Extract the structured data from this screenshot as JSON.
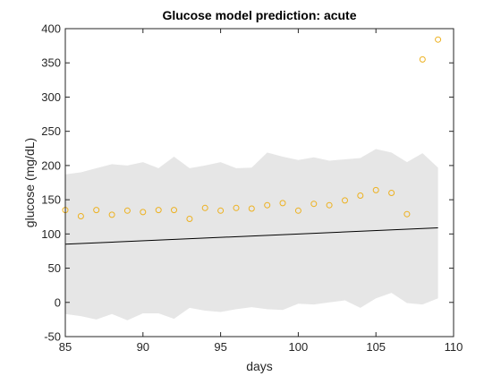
{
  "chart_data": {
    "type": "line",
    "title": "Glucose model prediction: acute",
    "xlabel": "days",
    "ylabel": "glucose (mg/dL)",
    "xlim": [
      85,
      110
    ],
    "ylim": [
      -50,
      400
    ],
    "xticks": [
      85,
      90,
      95,
      100,
      105,
      110
    ],
    "yticks": [
      -50,
      0,
      50,
      100,
      150,
      200,
      250,
      300,
      350,
      400
    ],
    "grid": false,
    "band": {
      "x": [
        85,
        86,
        87,
        88,
        89,
        90,
        91,
        92,
        93,
        94,
        95,
        96,
        97,
        98,
        99,
        100,
        101,
        102,
        103,
        104,
        105,
        106,
        107,
        108,
        109
      ],
      "upper": [
        187,
        190,
        196,
        202,
        200,
        205,
        196,
        213,
        196,
        200,
        205,
        196,
        197,
        219,
        213,
        208,
        212,
        207,
        209,
        211,
        224,
        219,
        205,
        218,
        197
      ],
      "lower": [
        -17,
        -20,
        -25,
        -17,
        -26,
        -16,
        -16,
        -24,
        -8,
        -12,
        -14,
        -10,
        -7,
        -10,
        -11,
        -2,
        -3,
        0,
        3,
        -8,
        6,
        14,
        -1,
        -3,
        6
      ],
      "color": "#e6e6e6"
    },
    "series": [
      {
        "mark": "line",
        "x": [
          85,
          109
        ],
        "y": [
          85,
          109
        ],
        "color": "#000000"
      },
      {
        "mark": "scatter",
        "x": [
          85,
          86,
          87,
          88,
          89,
          90,
          91,
          92,
          93,
          94,
          95,
          96,
          97,
          98,
          99,
          100,
          101,
          102,
          103,
          104,
          105,
          106,
          107,
          108,
          109
        ],
        "y": [
          135,
          126,
          135,
          128,
          134,
          132,
          135,
          135,
          122,
          138,
          134,
          138,
          137,
          142,
          145,
          134,
          144,
          142,
          149,
          156,
          164,
          160,
          129,
          355,
          384
        ],
        "color": "#edb120"
      }
    ]
  }
}
